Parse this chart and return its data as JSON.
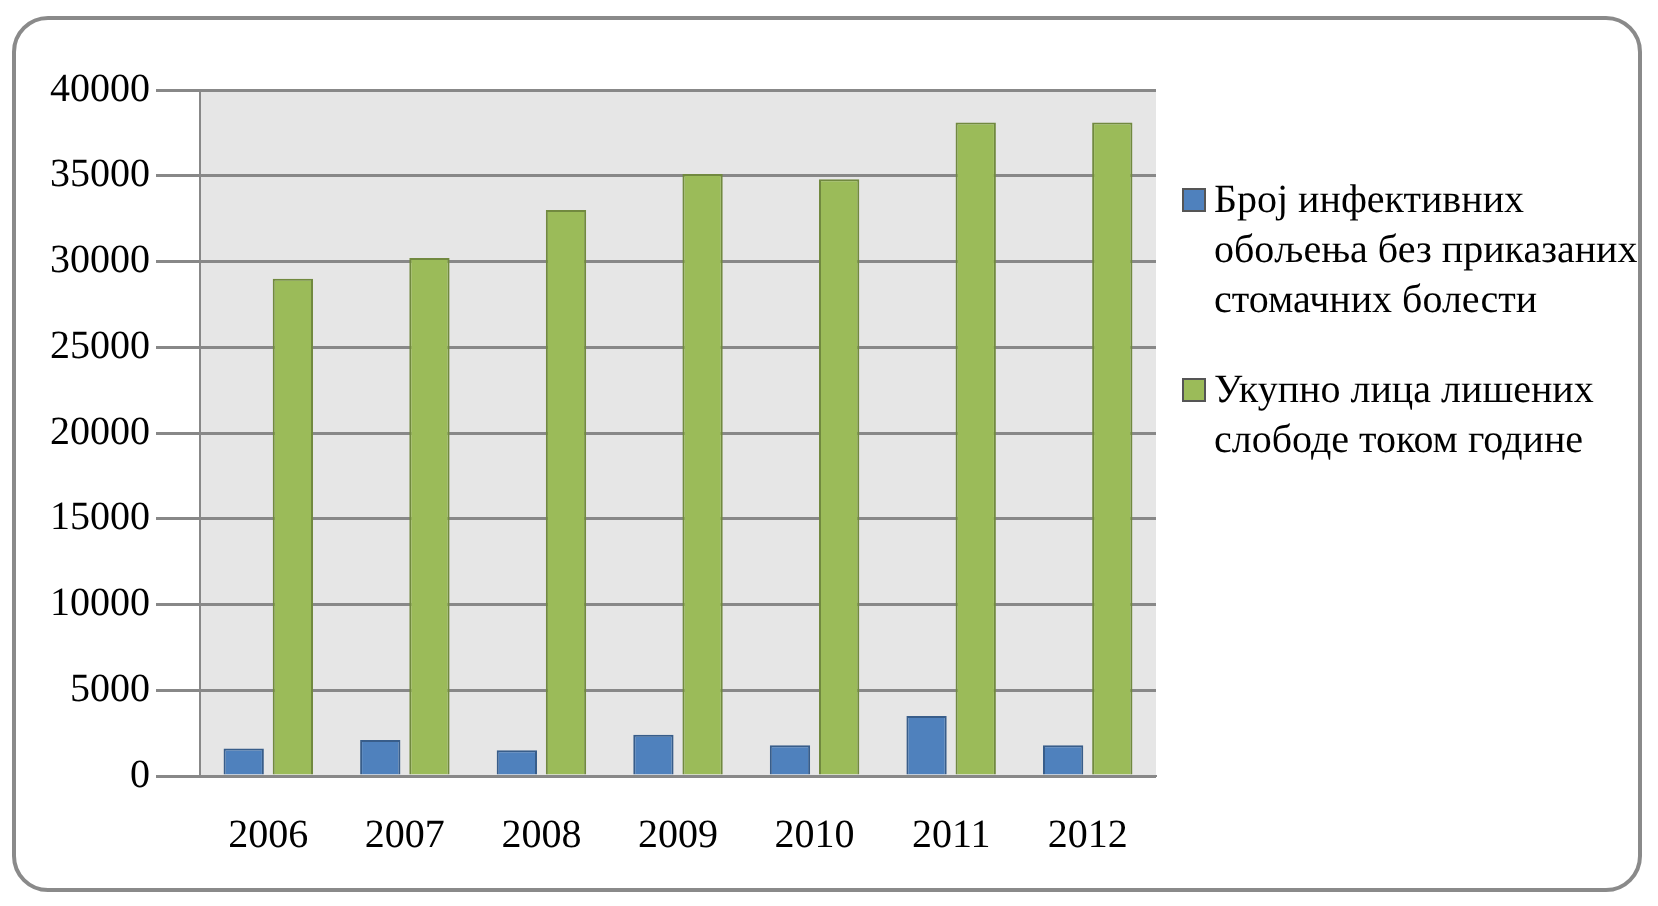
{
  "chart_data": {
    "type": "bar",
    "categories": [
      "2006",
      "2007",
      "2008",
      "2009",
      "2010",
      "2011",
      "2012"
    ],
    "series": [
      {
        "name": "Број инфективних обољења без приказаних стомачних болести",
        "color": "#4f81bd",
        "values": [
          1600,
          2100,
          1500,
          2400,
          1800,
          3500,
          1800
        ]
      },
      {
        "name": "Укупно лица лишених слободе током године",
        "color": "#9bbb59",
        "values": [
          29000,
          30200,
          33000,
          35100,
          34800,
          38100,
          38100
        ]
      }
    ],
    "ylim": [
      0,
      40000
    ],
    "yticks": [
      0,
      5000,
      10000,
      15000,
      20000,
      25000,
      30000,
      35000,
      40000
    ],
    "grid": "y",
    "legend": "right"
  }
}
